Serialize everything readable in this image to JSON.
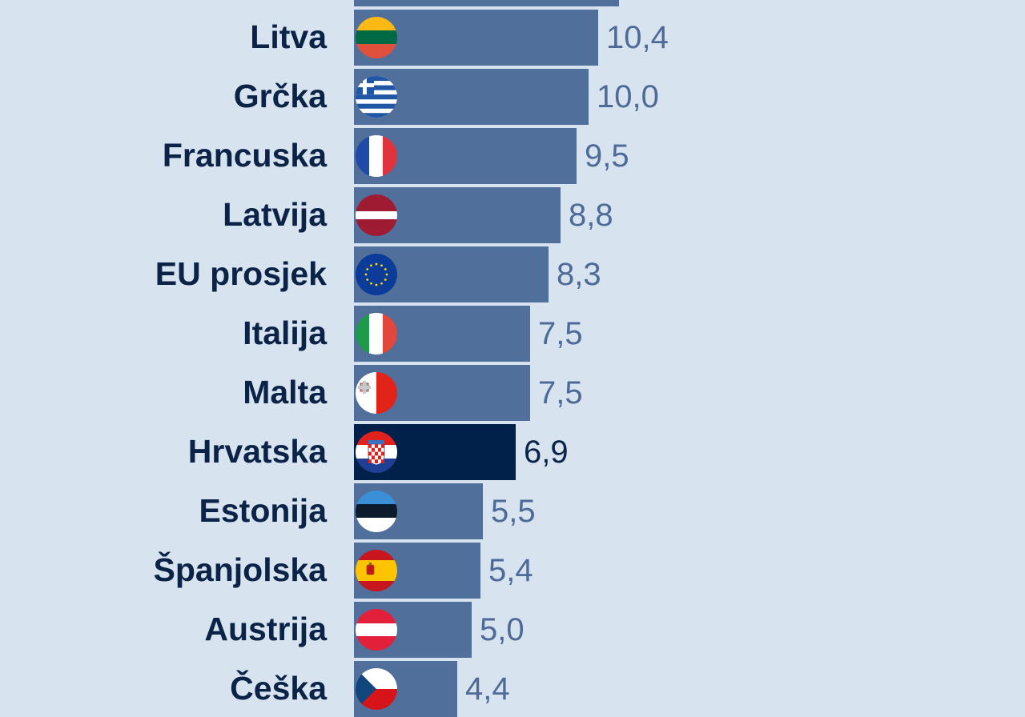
{
  "chart_data": {
    "type": "bar",
    "orientation": "horizontal",
    "categories": [
      "",
      "Litva",
      "Grčka",
      "Francuska",
      "Latvija",
      "EU prosjek",
      "Italija",
      "Malta",
      "Hrvatska",
      "Estonija",
      "Španjolska",
      "Austrija",
      "Češka"
    ],
    "values": [
      11.3,
      10.4,
      10.0,
      9.5,
      8.8,
      8.3,
      7.5,
      7.5,
      6.9,
      5.5,
      5.4,
      5.0,
      4.4
    ],
    "value_labels": [
      "",
      "10,4",
      "10,0",
      "9,5",
      "8,8",
      "8,3",
      "7,5",
      "7,5",
      "6,9",
      "5,5",
      "5,4",
      "5,0",
      "4,4"
    ],
    "flags": [
      "",
      "lithuania-flag",
      "greece-flag",
      "france-flag",
      "latvia-flag",
      "eu-flag",
      "italy-flag",
      "malta-flag",
      "croatia-flag",
      "estonia-flag",
      "spain-flag",
      "austria-flag",
      "czechia-flag"
    ],
    "highlight": "Hrvatska",
    "title": "",
    "xlabel": "",
    "ylabel": "",
    "grid": false,
    "legend": "none"
  },
  "colors": {
    "background": "#d8e3f0",
    "bar": "#506f9b",
    "bar_highlight": "#02214a",
    "label": "#0b2346",
    "value": "#4e6b98",
    "value_highlight": "#0b2346"
  }
}
